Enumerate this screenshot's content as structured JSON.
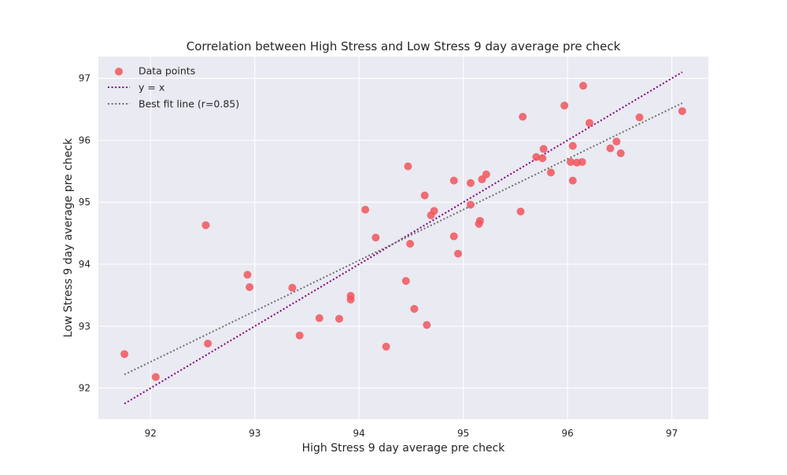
{
  "chart_data": {
    "type": "scatter",
    "title": "Correlation between High Stress and Low Stress 9 day average pre  check",
    "xlabel": "High Stress 9 day average pre  check",
    "ylabel": "Low Stress 9 day average pre  check",
    "xlim": [
      91.5,
      97.35
    ],
    "ylim": [
      91.5,
      97.35
    ],
    "xticks": [
      "92",
      "93",
      "94",
      "95",
      "96",
      "97"
    ],
    "yticks": [
      "92",
      "93",
      "94",
      "95",
      "96",
      "97"
    ],
    "grid": true,
    "legend_position": "top-left",
    "legend": [
      "Data points",
      "y = x",
      "Best fit line (r=0.85)"
    ],
    "series": [
      {
        "name": "Data points",
        "kind": "scatter",
        "color": "#f0565c",
        "points": [
          [
            91.75,
            92.55
          ],
          [
            92.05,
            92.18
          ],
          [
            92.53,
            94.63
          ],
          [
            92.55,
            92.72
          ],
          [
            92.93,
            93.83
          ],
          [
            92.95,
            93.63
          ],
          [
            93.36,
            93.62
          ],
          [
            93.43,
            92.85
          ],
          [
            93.62,
            93.13
          ],
          [
            93.81,
            93.12
          ],
          [
            93.92,
            93.49
          ],
          [
            93.92,
            93.43
          ],
          [
            94.06,
            94.88
          ],
          [
            94.16,
            94.43
          ],
          [
            94.26,
            92.67
          ],
          [
            94.45,
            93.73
          ],
          [
            94.47,
            95.58
          ],
          [
            94.49,
            94.33
          ],
          [
            94.53,
            93.28
          ],
          [
            94.63,
            95.11
          ],
          [
            94.65,
            93.02
          ],
          [
            94.69,
            94.79
          ],
          [
            94.72,
            94.86
          ],
          [
            94.91,
            95.35
          ],
          [
            94.91,
            94.45
          ],
          [
            94.95,
            94.17
          ],
          [
            95.07,
            94.96
          ],
          [
            95.07,
            95.31
          ],
          [
            95.15,
            94.65
          ],
          [
            95.16,
            94.7
          ],
          [
            95.18,
            95.37
          ],
          [
            95.22,
            95.45
          ],
          [
            95.55,
            94.85
          ],
          [
            95.57,
            96.38
          ],
          [
            95.7,
            95.73
          ],
          [
            95.76,
            95.71
          ],
          [
            95.77,
            95.86
          ],
          [
            95.84,
            95.48
          ],
          [
            95.97,
            96.56
          ],
          [
            96.03,
            95.65
          ],
          [
            96.05,
            95.35
          ],
          [
            96.05,
            95.91
          ],
          [
            96.09,
            95.64
          ],
          [
            96.14,
            95.65
          ],
          [
            96.15,
            96.88
          ],
          [
            96.21,
            96.28
          ],
          [
            96.41,
            95.87
          ],
          [
            96.47,
            95.98
          ],
          [
            96.51,
            95.79
          ],
          [
            96.69,
            96.37
          ],
          [
            97.1,
            96.47
          ]
        ]
      },
      {
        "name": "y = x",
        "kind": "line",
        "style": "dotted",
        "color": "#800080",
        "points": [
          [
            91.75,
            91.75
          ],
          [
            97.1,
            97.1
          ]
        ]
      },
      {
        "name": "Best fit line (r=0.85)",
        "kind": "line",
        "style": "dotted",
        "color": "#707070",
        "points": [
          [
            91.75,
            92.22
          ],
          [
            97.1,
            96.6
          ]
        ]
      }
    ]
  }
}
